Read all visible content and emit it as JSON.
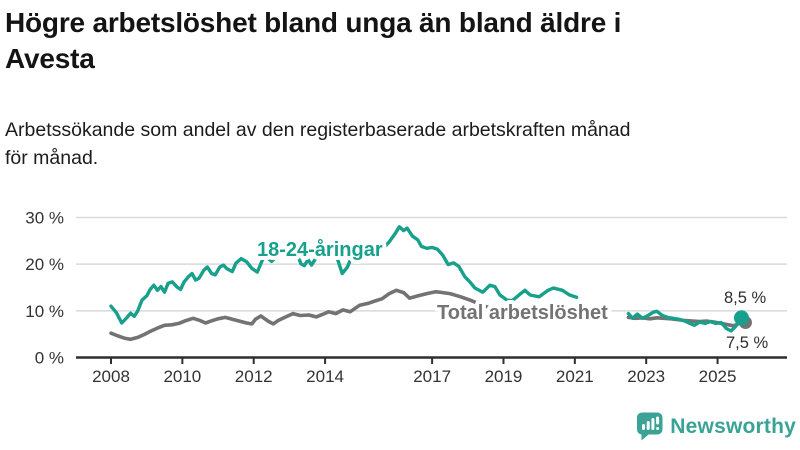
{
  "header": {
    "title": "Högre arbetslöshet bland unga än bland äldre i Avesta",
    "title_lines": [
      "Högre arbetslöshet bland unga än bland äldre i",
      "Avesta"
    ],
    "subtitle": "Arbetssökande som andel av den registerbaserade arbetskraften månad för månad.",
    "subtitle_lines": [
      "Arbetssökande som andel av den registerbaserade arbetskraften månad",
      "för månad."
    ]
  },
  "footer": {
    "brand": "Newsworthy",
    "brand_color": "#3aa396"
  },
  "chart_data": {
    "type": "line",
    "title": "Högre arbetslöshet bland unga än bland äldre i Avesta",
    "subtitle": "Arbetssökande som andel av den registerbaserade arbetskraften månad för månad.",
    "xlabel": "",
    "ylabel": "",
    "unit": "%",
    "x_axis": {
      "ticks": [
        2008,
        2010,
        2012,
        2014,
        2017,
        2019,
        2021,
        2023,
        2025
      ],
      "labels": [
        "2008",
        "2010",
        "2012",
        "2014",
        "2017",
        "2019",
        "2021",
        "2023",
        "2025"
      ],
      "range": [
        2007.0,
        2026.9
      ]
    },
    "y_axis": {
      "ticks": [
        0,
        10,
        20,
        30
      ],
      "labels": [
        "0 %",
        "10 %",
        "20 %",
        "30 %"
      ],
      "range": [
        0,
        30
      ]
    },
    "grid": true,
    "legend_position": "inline-labels",
    "colors": {
      "grid": "#d9d9d9",
      "axis": "#2f2f2f",
      "tick_text": "#333333",
      "value_labels": "#2e2e2e"
    },
    "series": [
      {
        "name": "18-24-åringar",
        "color": "#17a08b",
        "latest_label": "8,5 %",
        "latest_value": 8.5,
        "segments": [
          [
            [
              2008.0,
              11.0
            ],
            [
              2008.15,
              9.6
            ],
            [
              2008.3,
              7.4
            ],
            [
              2008.45,
              8.6
            ],
            [
              2008.55,
              9.5
            ],
            [
              2008.65,
              8.8
            ],
            [
              2008.75,
              10.0
            ],
            [
              2008.87,
              12.3
            ],
            [
              2009.0,
              13.2
            ],
            [
              2009.1,
              14.6
            ],
            [
              2009.2,
              15.5
            ],
            [
              2009.3,
              14.4
            ],
            [
              2009.4,
              15.2
            ],
            [
              2009.5,
              14.0
            ],
            [
              2009.6,
              15.9
            ],
            [
              2009.72,
              16.2
            ],
            [
              2009.85,
              15.1
            ],
            [
              2009.95,
              14.6
            ],
            [
              2010.05,
              16.2
            ],
            [
              2010.17,
              17.3
            ],
            [
              2010.27,
              18.0
            ],
            [
              2010.37,
              16.6
            ],
            [
              2010.47,
              17.0
            ],
            [
              2010.6,
              18.7
            ],
            [
              2010.7,
              19.4
            ],
            [
              2010.82,
              18.0
            ],
            [
              2010.92,
              17.7
            ],
            [
              2011.05,
              19.4
            ],
            [
              2011.15,
              19.8
            ],
            [
              2011.25,
              19.0
            ],
            [
              2011.4,
              18.4
            ],
            [
              2011.5,
              20.2
            ],
            [
              2011.65,
              21.2
            ],
            [
              2011.8,
              20.5
            ],
            [
              2011.95,
              19.1
            ],
            [
              2012.1,
              18.3
            ],
            [
              2012.25,
              21.0
            ],
            [
              2012.35,
              21.6
            ],
            [
              2012.5,
              20.6
            ],
            [
              2012.65,
              21.7
            ],
            [
              2012.78,
              22.7
            ],
            [
              2012.9,
              21.9
            ],
            [
              2013.05,
              21.6
            ],
            [
              2013.2,
              22.7
            ],
            [
              2013.32,
              20.1
            ],
            [
              2013.42,
              19.7
            ],
            [
              2013.52,
              21.0
            ],
            [
              2013.62,
              19.8
            ],
            [
              2013.77,
              21.6
            ],
            [
              2013.9,
              22.3
            ],
            [
              2014.05,
              21.9
            ],
            [
              2014.2,
              22.7
            ],
            [
              2014.33,
              21.5
            ],
            [
              2014.48,
              18.0
            ],
            [
              2014.62,
              19.3
            ],
            [
              2014.75,
              21.6
            ],
            [
              2014.9,
              22.2
            ],
            [
              2015.05,
              21.7
            ],
            [
              2015.2,
              22.3
            ],
            [
              2015.35,
              21.4
            ],
            [
              2015.5,
              22.6
            ],
            [
              2015.65,
              23.6
            ],
            [
              2015.8,
              24.8
            ],
            [
              2015.95,
              26.4
            ],
            [
              2016.08,
              28.0
            ],
            [
              2016.2,
              27.2
            ],
            [
              2016.3,
              27.7
            ],
            [
              2016.45,
              26.0
            ],
            [
              2016.6,
              25.2
            ],
            [
              2016.7,
              23.8
            ],
            [
              2016.85,
              23.4
            ],
            [
              2017.0,
              23.6
            ],
            [
              2017.15,
              23.2
            ],
            [
              2017.3,
              21.9
            ],
            [
              2017.45,
              19.9
            ],
            [
              2017.6,
              20.3
            ],
            [
              2017.75,
              19.5
            ],
            [
              2017.92,
              17.3
            ],
            [
              2018.06,
              16.2
            ],
            [
              2018.2,
              14.9
            ],
            [
              2018.42,
              14.0
            ],
            [
              2018.62,
              15.5
            ],
            [
              2018.76,
              15.2
            ],
            [
              2018.9,
              13.4
            ],
            [
              2019.1,
              12.3
            ],
            [
              2019.25,
              12.2
            ],
            [
              2019.5,
              13.8
            ],
            [
              2019.6,
              14.4
            ],
            [
              2019.75,
              13.4
            ],
            [
              2020.0,
              13.0
            ],
            [
              2020.25,
              14.4
            ],
            [
              2020.4,
              14.9
            ],
            [
              2020.65,
              14.4
            ],
            [
              2020.85,
              13.4
            ],
            [
              2021.05,
              12.9
            ]
          ],
          [
            [
              2022.5,
              9.4
            ],
            [
              2022.62,
              8.4
            ],
            [
              2022.75,
              9.3
            ],
            [
              2022.9,
              8.4
            ],
            [
              2023.05,
              9.0
            ],
            [
              2023.2,
              9.7
            ],
            [
              2023.3,
              9.9
            ],
            [
              2023.45,
              9.0
            ],
            [
              2023.6,
              8.6
            ],
            [
              2023.75,
              8.4
            ],
            [
              2023.9,
              8.2
            ],
            [
              2024.05,
              7.9
            ],
            [
              2024.2,
              7.4
            ],
            [
              2024.35,
              6.9
            ],
            [
              2024.5,
              7.6
            ],
            [
              2024.65,
              7.3
            ],
            [
              2024.8,
              7.7
            ],
            [
              2024.95,
              7.3
            ],
            [
              2025.1,
              7.5
            ],
            [
              2025.25,
              6.2
            ],
            [
              2025.38,
              5.7
            ],
            [
              2025.5,
              6.6
            ],
            [
              2025.67,
              8.5
            ]
          ]
        ]
      },
      {
        "name": "Total arbetslöshet",
        "color": "#737373",
        "latest_label": "7,5 %",
        "latest_value": 7.5,
        "segments": [
          [
            [
              2008.0,
              5.2
            ],
            [
              2008.2,
              4.6
            ],
            [
              2008.4,
              4.1
            ],
            [
              2008.55,
              3.9
            ],
            [
              2008.75,
              4.3
            ],
            [
              2008.95,
              5.0
            ],
            [
              2009.1,
              5.6
            ],
            [
              2009.3,
              6.3
            ],
            [
              2009.5,
              6.9
            ],
            [
              2009.7,
              7.0
            ],
            [
              2009.9,
              7.3
            ],
            [
              2010.1,
              7.9
            ],
            [
              2010.3,
              8.4
            ],
            [
              2010.5,
              7.9
            ],
            [
              2010.65,
              7.4
            ],
            [
              2010.8,
              7.8
            ],
            [
              2011.0,
              8.3
            ],
            [
              2011.2,
              8.6
            ],
            [
              2011.4,
              8.2
            ],
            [
              2011.6,
              7.8
            ],
            [
              2011.8,
              7.4
            ],
            [
              2011.95,
              7.2
            ],
            [
              2012.05,
              8.2
            ],
            [
              2012.2,
              8.9
            ],
            [
              2012.4,
              7.8
            ],
            [
              2012.55,
              7.2
            ],
            [
              2012.7,
              8.0
            ],
            [
              2012.9,
              8.7
            ],
            [
              2013.1,
              9.4
            ],
            [
              2013.3,
              9.0
            ],
            [
              2013.55,
              9.1
            ],
            [
              2013.75,
              8.7
            ],
            [
              2013.95,
              9.3
            ],
            [
              2014.1,
              9.8
            ],
            [
              2014.3,
              9.4
            ],
            [
              2014.5,
              10.2
            ],
            [
              2014.7,
              9.8
            ],
            [
              2014.97,
              11.2
            ],
            [
              2015.2,
              11.6
            ],
            [
              2015.4,
              12.1
            ],
            [
              2015.6,
              12.6
            ],
            [
              2015.8,
              13.7
            ],
            [
              2016.0,
              14.4
            ],
            [
              2016.2,
              13.9
            ],
            [
              2016.37,
              12.7
            ],
            [
              2016.6,
              13.2
            ],
            [
              2016.85,
              13.7
            ],
            [
              2017.1,
              14.1
            ],
            [
              2017.3,
              13.9
            ],
            [
              2017.5,
              13.7
            ],
            [
              2017.8,
              13.0
            ],
            [
              2018.1,
              12.2
            ],
            [
              2018.4,
              11.2
            ],
            [
              2018.7,
              10.4
            ],
            [
              2019.0,
              9.6
            ],
            [
              2019.3,
              9.2
            ],
            [
              2019.6,
              8.9
            ],
            [
              2019.9,
              8.7
            ],
            [
              2020.2,
              9.3
            ],
            [
              2020.5,
              9.6
            ],
            [
              2020.8,
              9.2
            ],
            [
              2021.05,
              8.8
            ]
          ],
          [
            [
              2022.5,
              8.6
            ],
            [
              2022.7,
              8.4
            ],
            [
              2022.9,
              8.5
            ],
            [
              2023.1,
              8.3
            ],
            [
              2023.3,
              8.5
            ],
            [
              2023.5,
              8.4
            ],
            [
              2023.7,
              8.3
            ],
            [
              2023.9,
              8.1
            ],
            [
              2024.1,
              7.9
            ],
            [
              2024.3,
              7.8
            ],
            [
              2024.5,
              7.7
            ],
            [
              2024.7,
              7.8
            ],
            [
              2024.9,
              7.6
            ],
            [
              2025.1,
              7.3
            ],
            [
              2025.3,
              7.0
            ],
            [
              2025.45,
              6.8
            ],
            [
              2025.67,
              7.5
            ]
          ]
        ]
      }
    ]
  }
}
